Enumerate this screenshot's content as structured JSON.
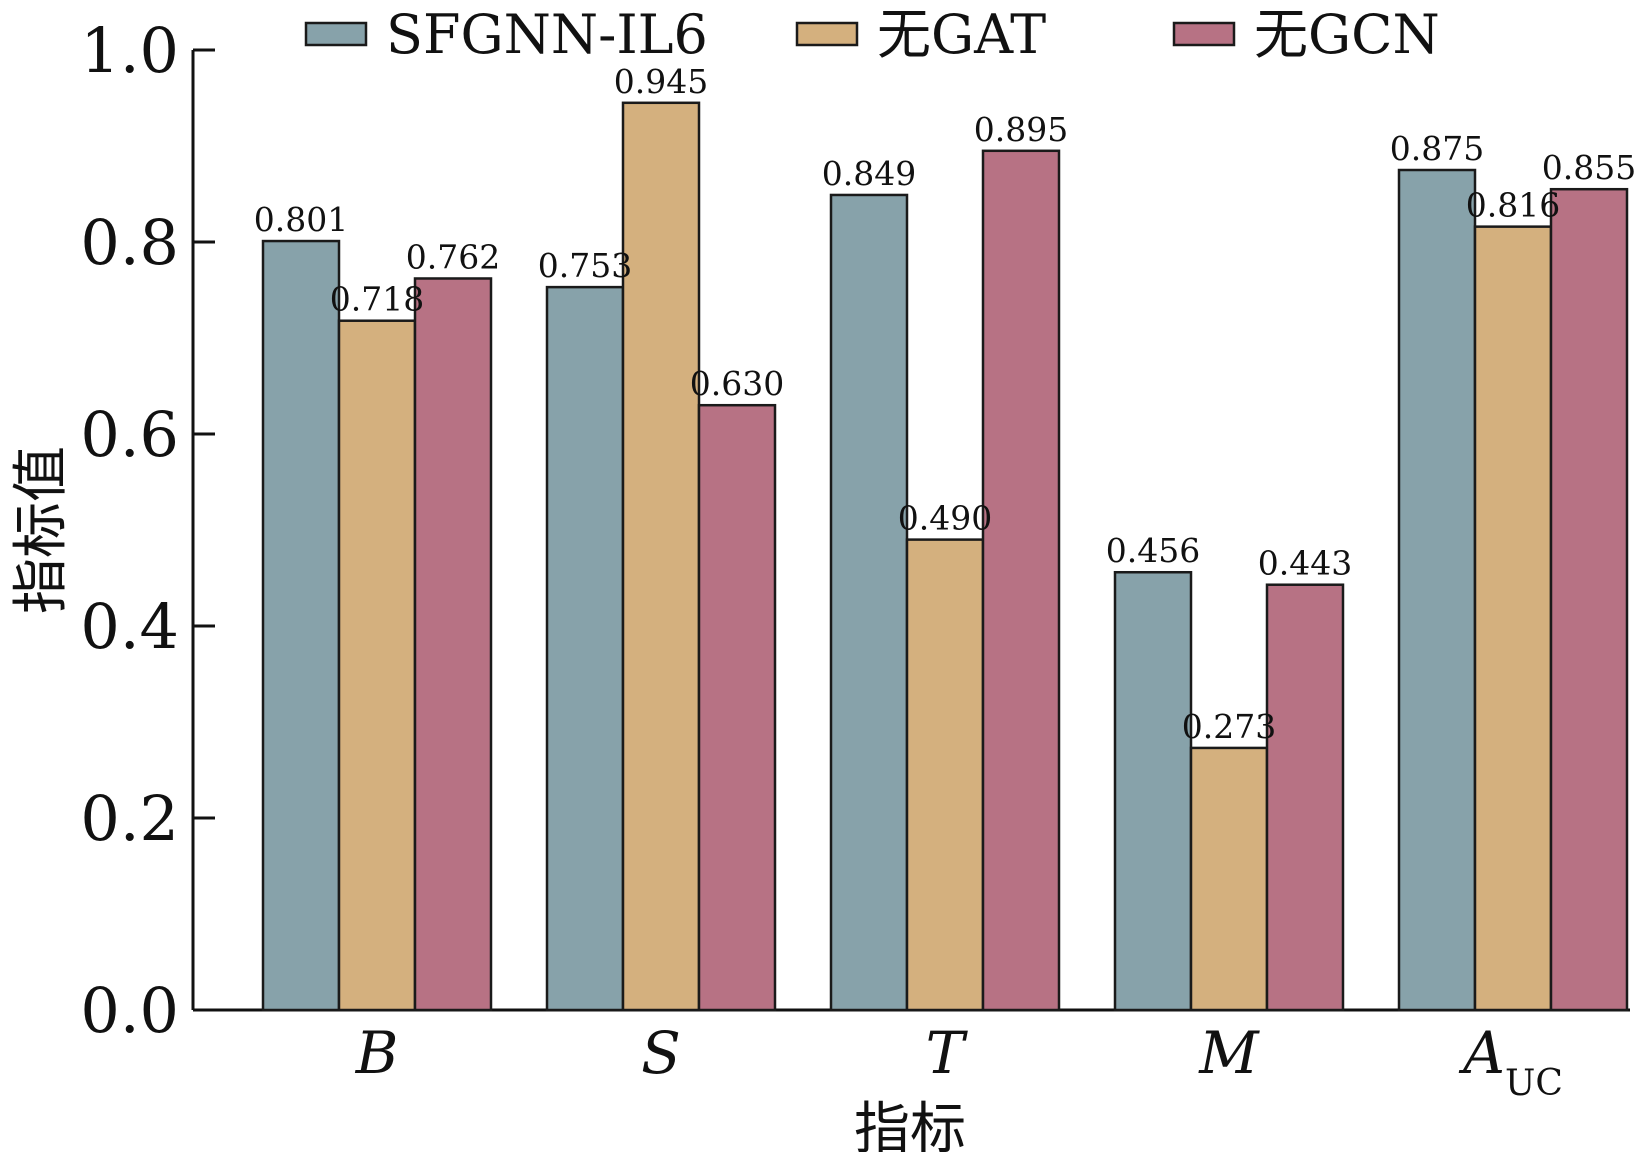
{
  "chart_data": {
    "type": "bar",
    "title": "",
    "xlabel": "指标",
    "ylabel": "指标值",
    "ylim": [
      0,
      1.0
    ],
    "yticks": [
      "0.0",
      "0.2",
      "0.4",
      "0.6",
      "0.8",
      "1.0"
    ],
    "ytick_values": [
      0,
      0.2,
      0.4,
      0.6,
      0.8,
      1.0
    ],
    "grid": false,
    "legend_position": "top",
    "categories": [
      {
        "main": "B",
        "sub": ""
      },
      {
        "main": "S",
        "sub": ""
      },
      {
        "main": "T",
        "sub": ""
      },
      {
        "main": "M",
        "sub": ""
      },
      {
        "main": "A",
        "sub": "UC"
      }
    ],
    "series": [
      {
        "name": "SFGNN-IL6",
        "color": "#87a2aa",
        "values": [
          0.801,
          0.753,
          0.849,
          0.456,
          0.875
        ],
        "labels": [
          "0.801",
          "0.753",
          "0.849",
          "0.456",
          "0.875"
        ]
      },
      {
        "name": "无GAT",
        "color": "#d4b07e",
        "values": [
          0.718,
          0.945,
          0.49,
          0.273,
          0.816
        ],
        "labels": [
          "0.718",
          "0.945",
          "0.490",
          "0.273",
          "0.816"
        ]
      },
      {
        "name": "无GCN",
        "color": "#b77284",
        "values": [
          0.762,
          0.63,
          0.895,
          0.443,
          0.855
        ],
        "labels": [
          "0.762",
          "0.630",
          "0.895",
          "0.443",
          "0.855"
        ]
      }
    ]
  }
}
